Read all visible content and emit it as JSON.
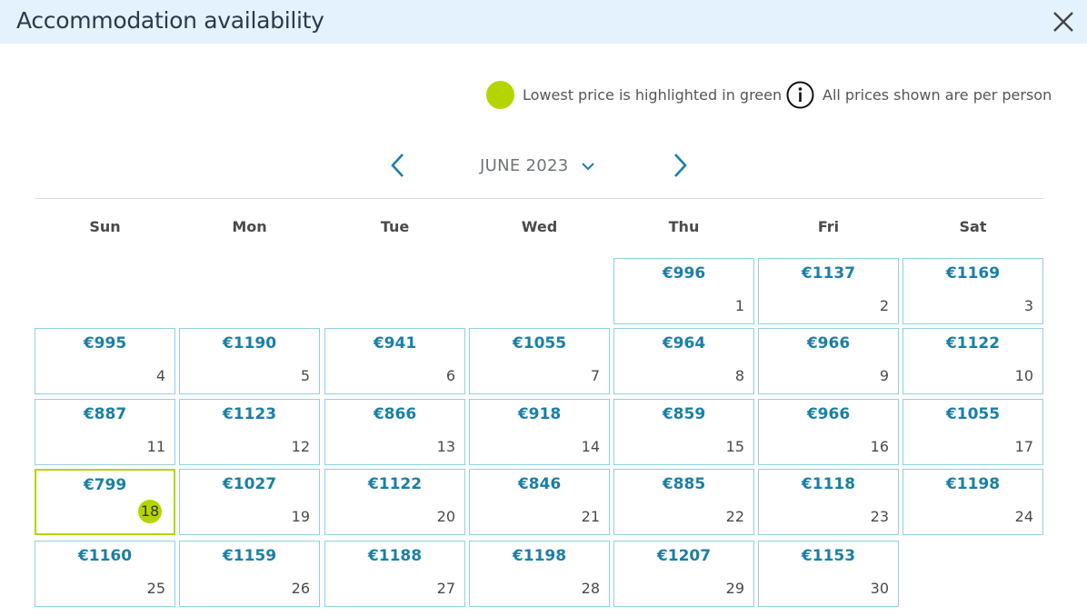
{
  "header": {
    "title": "Accommodation availability"
  },
  "legend": {
    "lowest_label": "Lowest price is highlighted in green",
    "per_person_label": "All prices shown are per person",
    "lowest_color": "#b4d500"
  },
  "calendar": {
    "month_label": "JUNE 2023",
    "weekdays": [
      "Sun",
      "Mon",
      "Tue",
      "Wed",
      "Thu",
      "Fri",
      "Sat"
    ],
    "days": [
      {
        "day": "1",
        "price": "€996"
      },
      {
        "day": "2",
        "price": "€1137"
      },
      {
        "day": "3",
        "price": "€1169"
      },
      {
        "day": "4",
        "price": "€995"
      },
      {
        "day": "5",
        "price": "€1190"
      },
      {
        "day": "6",
        "price": "€941"
      },
      {
        "day": "7",
        "price": "€1055"
      },
      {
        "day": "8",
        "price": "€964"
      },
      {
        "day": "9",
        "price": "€966"
      },
      {
        "day": "10",
        "price": "€1122"
      },
      {
        "day": "11",
        "price": "€887"
      },
      {
        "day": "12",
        "price": "€1123"
      },
      {
        "day": "13",
        "price": "€866"
      },
      {
        "day": "14",
        "price": "€918"
      },
      {
        "day": "15",
        "price": "€859"
      },
      {
        "day": "16",
        "price": "€966"
      },
      {
        "day": "17",
        "price": "€1055"
      },
      {
        "day": "18",
        "price": "€799",
        "lowest": true
      },
      {
        "day": "19",
        "price": "€1027"
      },
      {
        "day": "20",
        "price": "€1122"
      },
      {
        "day": "21",
        "price": "€846"
      },
      {
        "day": "22",
        "price": "€885"
      },
      {
        "day": "23",
        "price": "€1118"
      },
      {
        "day": "24",
        "price": "€1198"
      },
      {
        "day": "25",
        "price": "€1160"
      },
      {
        "day": "26",
        "price": "€1159"
      },
      {
        "day": "27",
        "price": "€1188"
      },
      {
        "day": "28",
        "price": "€1198"
      },
      {
        "day": "29",
        "price": "€1207"
      },
      {
        "day": "30",
        "price": "€1153"
      }
    ]
  }
}
